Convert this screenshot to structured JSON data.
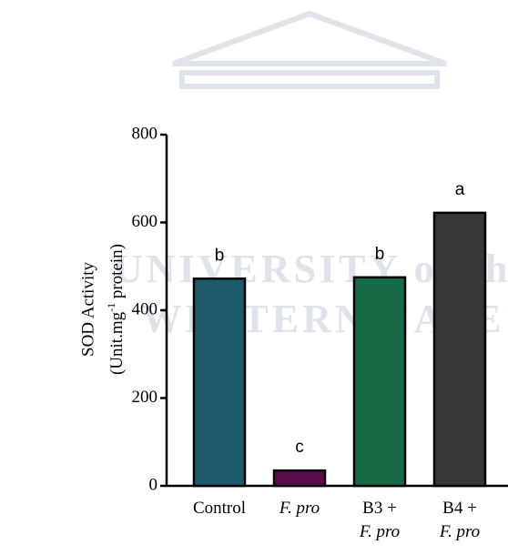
{
  "chart_data": {
    "type": "bar",
    "watermark": [
      "UNIVERSITY of the",
      "WESTERN CAPE"
    ],
    "y_label": {
      "line1": "SOD Activity",
      "line2_start": "(Unit.mg",
      "line2_superscript": "-1",
      "line2_end": " protein)"
    },
    "categories": [
      "Control",
      "F. pro",
      "B3 + F. pro",
      "B4 + F. pro"
    ],
    "values": [
      472,
      35,
      475,
      622
    ],
    "colors": [
      "#1e5a6c",
      "#5a0b4c",
      "#176b46",
      "#383838"
    ],
    "annotations": [
      "b",
      "c",
      "b",
      "a"
    ],
    "ylim": [
      0,
      800
    ],
    "yticks": [
      0,
      200,
      400,
      600,
      800
    ]
  }
}
